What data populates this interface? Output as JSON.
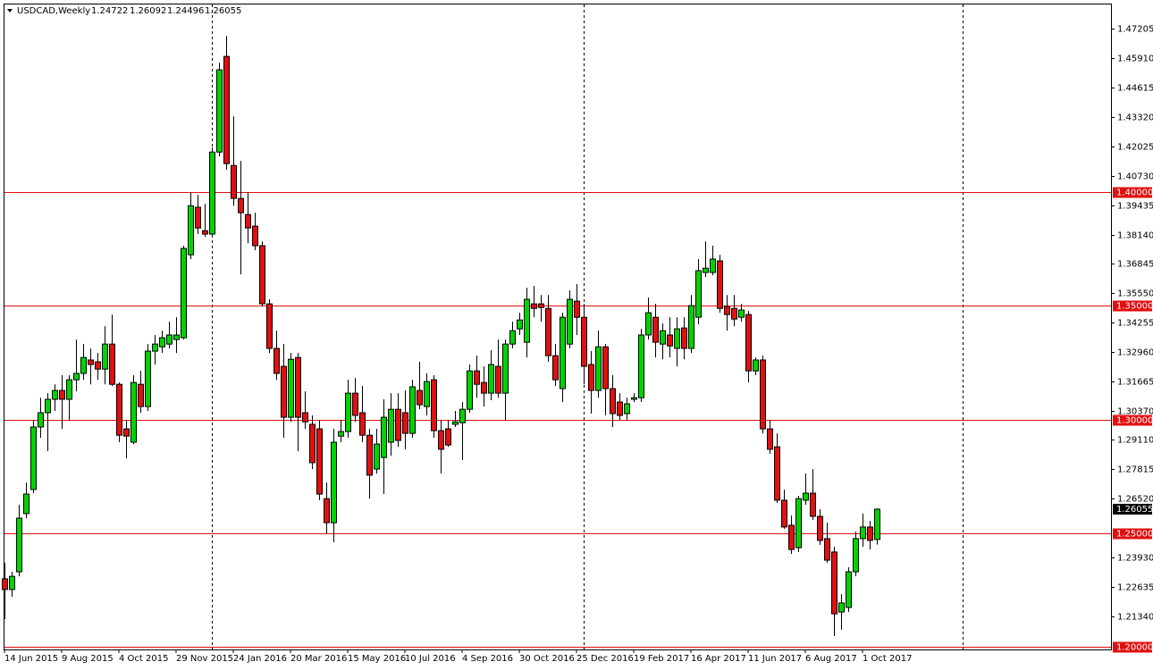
{
  "chart_data": {
    "type": "candlestick",
    "title": "USDCAD,Weekly",
    "categories": [
      "14 Jun 2015",
      null,
      null,
      null,
      null,
      null,
      null,
      null,
      "9 Aug 2015",
      null,
      null,
      null,
      null,
      null,
      null,
      null,
      "4 Oct 2015",
      null,
      null,
      null,
      null,
      null,
      null,
      null,
      "29 Nov 2015",
      null,
      null,
      null,
      null,
      null,
      null,
      null,
      "24 Jan 2016",
      null,
      null,
      null,
      null,
      null,
      null,
      null,
      "20 Mar 2016",
      null,
      null,
      null,
      null,
      null,
      null,
      null,
      "15 May 2016",
      null,
      null,
      null,
      null,
      null,
      null,
      null,
      "10 Jul 2016",
      null,
      null,
      null,
      null,
      null,
      null,
      null,
      "4 Sep 2016",
      null,
      null,
      null,
      null,
      null,
      null,
      null,
      "30 Oct 2016",
      null,
      null,
      null,
      null,
      null,
      null,
      null,
      "25 Dec 2016",
      null,
      null,
      null,
      null,
      null,
      null,
      null,
      "19 Feb 2017",
      null,
      null,
      null,
      null,
      null,
      null,
      null,
      "16 Apr 2017",
      null,
      null,
      null,
      null,
      null,
      null,
      null,
      "11 Jun 2017",
      null,
      null,
      null,
      null,
      null,
      null,
      null,
      "6 Aug 2017",
      null,
      null,
      null,
      null,
      null,
      null,
      null,
      "1 Oct 2017",
      null,
      null
    ],
    "open": [
      1.2299,
      1.2252,
      1.233,
      1.2586,
      1.2692,
      1.2967,
      1.303,
      1.3089,
      1.3128,
      1.3089,
      1.3175,
      1.3203,
      1.3262,
      1.3254,
      1.3222,
      1.3332,
      1.3155,
      1.2959,
      1.29,
      1.3155,
      1.3057,
      1.3301,
      1.332,
      1.3332,
      1.3352,
      1.336,
      1.3725,
      1.3934,
      1.3831,
      1.3816,
      1.4177,
      1.4598,
      1.4118,
      1.3973,
      1.3902,
      1.3851,
      1.3765,
      1.3509,
      1.3313,
      1.3234,
      1.301,
      1.3273,
      1.303,
      1.2979,
      1.2959,
      1.2652,
      1.2546,
      1.2927,
      1.2947,
      1.3116,
      1.303,
      1.2931,
      1.2782,
      1.2833,
      1.29,
      1.3045,
      1.303,
      1.2939,
      1.3128,
      1.3057,
      1.3175,
      1.2951,
      1.2959,
      1.2979,
      1.2986,
      1.3045,
      1.3214,
      1.3163,
      1.3116,
      1.3234,
      1.3116,
      1.3332,
      1.3399,
      1.334,
      1.3509,
      1.3509,
      1.3489,
      1.3281,
      1.3136,
      1.3332,
      1.3521,
      1.345,
      1.3242,
      1.3128,
      1.332,
      1.3136,
      1.3077,
      1.3026,
      1.3089,
      1.3096,
      1.3372,
      1.345,
      1.3332,
      1.3372,
      1.3313,
      1.3403,
      1.3313,
      1.345,
      1.3647,
      1.3647,
      1.3698,
      1.3497,
      1.3489,
      1.345,
      1.3462,
      1.3214,
      1.3262,
      1.2959,
      1.288,
      1.2645,
      1.2535,
      1.2436,
      1.2645,
      1.2676,
      1.2574,
      1.2476,
      1.2417,
      1.2153,
      1.2173,
      1.233,
      1.2476,
      1.2527,
      1.24722
    ],
    "high": [
      1.2369,
      1.233,
      1.2625,
      1.2723,
      1.2998,
      1.3096,
      1.3116,
      1.3155,
      1.3195,
      1.3195,
      1.3352,
      1.3332,
      1.3313,
      1.3293,
      1.3411,
      1.3462,
      1.3163,
      1.2998,
      1.3195,
      1.3214,
      1.3332,
      1.3372,
      1.3391,
      1.3431,
      1.345,
      1.3765,
      1.4,
      1.3989,
      1.3949,
      1.4197,
      1.457,
      1.4688,
      1.4334,
      1.4138,
      1.4,
      1.391,
      1.3784,
      1.3529,
      1.3391,
      1.3332,
      1.3293,
      1.3293,
      1.3124,
      1.3018,
      1.2998,
      1.2723,
      1.2959,
      1.2998,
      1.3175,
      1.3183,
      1.3148,
      1.2959,
      1.2959,
      1.3089,
      1.3116,
      1.3116,
      1.3128,
      1.3175,
      1.3254,
      1.3203,
      1.3195,
      1.2998,
      1.2998,
      1.3038,
      1.3077,
      1.3242,
      1.3281,
      1.3234,
      1.3305,
      1.3352,
      1.3352,
      1.3431,
      1.347,
      1.358,
      1.3588,
      1.3548,
      1.3548,
      1.3332,
      1.347,
      1.3568,
      1.3596,
      1.3509,
      1.3301,
      1.3391,
      1.3332,
      1.3195,
      1.3116,
      1.3096,
      1.3116,
      1.3399,
      1.3537,
      1.3509,
      1.3423,
      1.345,
      1.345,
      1.345,
      1.3548,
      1.3706,
      1.3784,
      1.3765,
      1.3725,
      1.3548,
      1.3548,
      1.3509,
      1.3478,
      1.3273,
      1.3281,
      1.2998,
      1.2939,
      1.2692,
      1.2578,
      1.2664,
      1.2762,
      1.2782,
      1.2605,
      1.2546,
      1.244,
      1.2232,
      1.235,
      1.2507,
      1.2586,
      1.2554,
      1.26092
    ],
    "low": [
      1.2122,
      1.222,
      1.231,
      1.2566,
      1.2676,
      1.292,
      1.2861,
      1.3038,
      1.2959,
      1.2998,
      1.3124,
      1.3175,
      1.3155,
      1.3175,
      1.3155,
      1.3148,
      1.29,
      1.2829,
      1.2892,
      1.303,
      1.3038,
      1.3242,
      1.3293,
      1.3313,
      1.3293,
      1.3352,
      1.3706,
      1.3816,
      1.3804,
      1.3804,
      1.4158,
      1.4099,
      1.3941,
      1.3639,
      1.3776,
      1.3745,
      1.3497,
      1.3293,
      1.3175,
      1.292,
      1.299,
      1.2861,
      1.2959,
      1.2782,
      1.2645,
      1.2499,
      1.246,
      1.29,
      1.292,
      1.299,
      1.29,
      1.2652,
      1.2762,
      1.2672,
      1.2841,
      1.288,
      1.2869,
      1.292,
      1.3045,
      1.3018,
      1.292,
      1.2762,
      1.288,
      1.2967,
      1.2821,
      1.303,
      1.3096,
      1.3057,
      1.3085,
      1.3096,
      1.2998,
      1.3313,
      1.3372,
      1.3273,
      1.345,
      1.3431,
      1.3254,
      1.3148,
      1.3077,
      1.3313,
      1.3372,
      1.3155,
      1.3026,
      1.3096,
      1.3018,
      1.2967,
      1.2998,
      1.2998,
      1.3077,
      1.3077,
      1.3352,
      1.3273,
      1.3265,
      1.3273,
      1.3234,
      1.3265,
      1.3293,
      1.3419,
      1.3627,
      1.3635,
      1.347,
      1.3391,
      1.3411,
      1.3431,
      1.3163,
      1.3195,
      1.2939,
      1.2849,
      1.2633,
      1.2519,
      1.2409,
      1.2417,
      1.2625,
      1.2558,
      1.2448,
      1.2369,
      1.2047,
      1.2075,
      1.2153,
      1.231,
      1.244,
      1.2428,
      1.24496
    ],
    "close": [
      1.2252,
      1.231,
      1.2566,
      1.2672,
      1.2967,
      1.303,
      1.3089,
      1.3128,
      1.3089,
      1.3175,
      1.3203,
      1.3273,
      1.3242,
      1.3222,
      1.3332,
      1.3155,
      1.2931,
      1.2927,
      1.3163,
      1.3057,
      1.3301,
      1.3332,
      1.336,
      1.3372,
      1.3372,
      1.3753,
      1.3941,
      1.3843,
      1.3816,
      1.4177,
      1.4539,
      1.4126,
      1.3973,
      1.391,
      1.3843,
      1.3765,
      1.3509,
      1.3313,
      1.3203,
      1.301,
      1.3265,
      1.301,
      1.299,
      1.281,
      1.2672,
      1.2546,
      1.29,
      1.2947,
      1.3116,
      1.3018,
      1.2931,
      1.2755,
      1.2892,
      1.301,
      1.3045,
      1.2908,
      1.2939,
      1.3144,
      1.3065,
      1.3167,
      1.2951,
      1.2869,
      1.2888,
      1.299,
      1.3045,
      1.3214,
      1.3155,
      1.3116,
      1.3242,
      1.3116,
      1.3332,
      1.3391,
      1.3438,
      1.3529,
      1.3489,
      1.3493,
      1.3281,
      1.3175,
      1.345,
      1.3529,
      1.345,
      1.3234,
      1.3128,
      1.332,
      1.3136,
      1.3026,
      1.3018,
      1.3069,
      1.3096,
      1.3372,
      1.347,
      1.334,
      1.3391,
      1.3324,
      1.3399,
      1.3313,
      1.3501,
      1.3655,
      1.3666,
      1.3706,
      1.3489,
      1.3462,
      1.3442,
      1.3482,
      1.3214,
      1.3262,
      1.2959,
      1.2869,
      1.2645,
      1.2527,
      1.2428,
      1.2652,
      1.2676,
      1.2574,
      1.2468,
      1.2381,
      1.2145,
      1.2193,
      1.233,
      1.2476,
      1.2527,
      1.2468,
      1.26055
    ],
    "up_color": "#00d400",
    "down_color": "#e01010",
    "ylim": [
      1.19764,
      1.48265
    ],
    "yticks": [
      1.47205,
      {
        "value": 1.4591,
        "label": "1.45910"
      },
      1.44615,
      {
        "value": 1.4332,
        "label": "1.43320"
      },
      1.42025,
      {
        "value": 1.4073,
        "label": "1.40730"
      },
      1.39435,
      {
        "value": 1.3814,
        "label": "1.38140"
      },
      1.36845,
      {
        "value": 1.3555,
        "label": "1.35550"
      },
      1.34255,
      {
        "value": 1.3296,
        "label": "1.32960"
      },
      1.31665,
      {
        "value": 1.3037,
        "label": "1.30370"
      },
      {
        "value": 1.2911,
        "label": "1.29110"
      },
      1.27815,
      {
        "value": 1.2652,
        "label": "1.26520"
      },
      {
        "value": 1.2393,
        "label": "1.23930"
      },
      1.22635,
      {
        "value": 1.2134,
        "label": "1.21340"
      }
    ],
    "levels": [
      {
        "value": 1.4,
        "label": "1.40000"
      },
      {
        "value": 1.35,
        "label": "1.35000"
      },
      {
        "value": 1.3,
        "label": "1.30000"
      },
      {
        "value": 1.25,
        "label": "1.25000"
      },
      {
        "value": 1.2,
        "label": "1.20000"
      }
    ],
    "level_color": "#e01010"
  }
}
